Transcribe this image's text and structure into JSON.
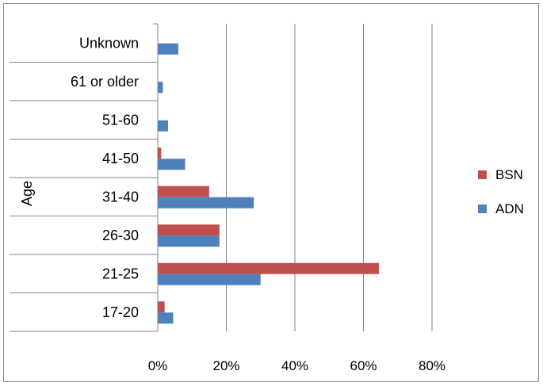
{
  "chart_data": {
    "type": "bar",
    "orientation": "horizontal",
    "ylabel": "Age",
    "xlabel": "",
    "categories": [
      "17-20",
      "21-25",
      "26-30",
      "31-40",
      "41-50",
      "51-60",
      "61 or older",
      "Unknown"
    ],
    "series": [
      {
        "name": "BSN",
        "color": "#C0504D",
        "values": [
          2,
          64.5,
          18,
          15,
          1,
          0,
          0,
          0
        ]
      },
      {
        "name": "ADN",
        "color": "#4F81BD",
        "values": [
          4.5,
          30,
          18,
          28,
          8,
          3,
          1.5,
          6
        ]
      }
    ],
    "xlim": [
      0,
      80
    ],
    "xticks": [
      "0%",
      "20%",
      "40%",
      "60%",
      "80%"
    ],
    "grid": "vertical",
    "legend": "right"
  }
}
